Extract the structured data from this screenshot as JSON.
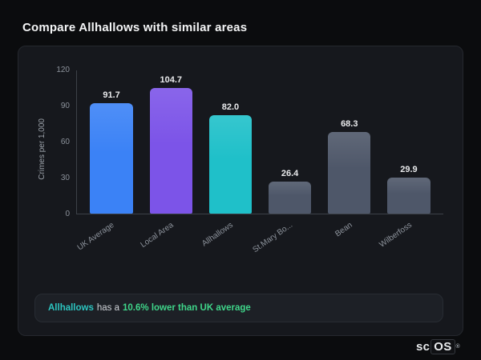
{
  "page": {
    "title": "Compare Allhallows with similar areas"
  },
  "chart_data": {
    "type": "bar",
    "categories": [
      "UK Average",
      "Local Area",
      "Allhallows",
      "St.Mary Bo...",
      "Bean",
      "Wilberfoss"
    ],
    "values": [
      91.7,
      104.7,
      82.0,
      26.4,
      68.3,
      29.9
    ],
    "value_labels": [
      "91.7",
      "104.7",
      "82.0",
      "26.4",
      "68.3",
      "29.9"
    ],
    "bar_colors": [
      "#3b82f6",
      "#7c54e8",
      "#1fc0c9",
      "#4e5769",
      "#4e5769",
      "#4e5769"
    ],
    "title": "",
    "xlabel": "",
    "ylabel": "Crimes per 1,000",
    "yticks": [
      0,
      30,
      60,
      90,
      120
    ],
    "ylim": [
      0,
      120
    ],
    "grid": false,
    "legend": "none"
  },
  "note": {
    "area": "Allhallows",
    "middle": "has a",
    "highlight": "10.6% lower than UK average"
  },
  "logo": {
    "prefix": "sc",
    "suffix": "OS",
    "reg": "®"
  },
  "colors": {
    "background": "#0b0c0e",
    "card": "#16181d",
    "note_area_accent": "#2cc5c0",
    "note_highlight_accent": "#3fd68a",
    "axis": "#3c4148"
  }
}
